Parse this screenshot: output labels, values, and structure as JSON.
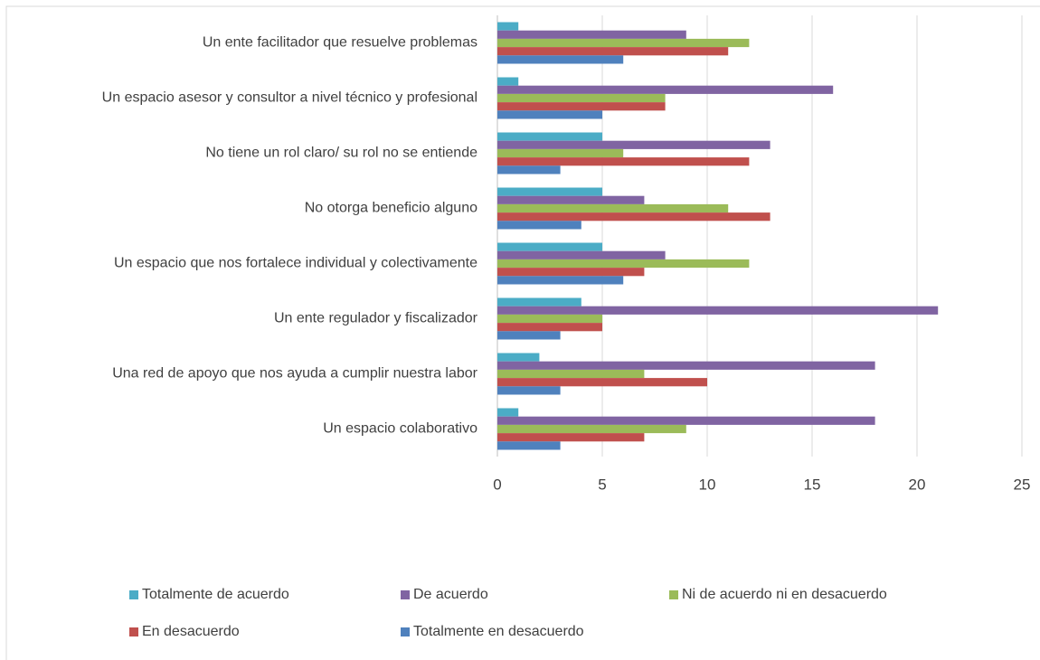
{
  "chart_data": {
    "type": "bar",
    "orientation": "horizontal",
    "categories": [
      "Un ente facilitador que resuelve problemas",
      "Un espacio asesor y consultor a nivel técnico y profesional",
      "No tiene un rol claro/ su rol no se entiende",
      "No otorga beneficio alguno",
      "Un espacio que nos fortalece individual y colectivamente",
      "Un ente regulador y fiscalizador",
      "Una red de apoyo que nos ayuda a cumplir nuestra labor",
      "Un espacio colaborativo"
    ],
    "series": [
      {
        "name": "Totalmente de acuerdo",
        "color": "#4bacc6",
        "values": [
          1,
          1,
          5,
          5,
          5,
          4,
          2,
          1
        ]
      },
      {
        "name": "De acuerdo",
        "color": "#8064a2",
        "values": [
          9,
          16,
          13,
          7,
          8,
          21,
          18,
          18
        ]
      },
      {
        "name": "Ni de acuerdo ni en desacuerdo",
        "color": "#9bbb59",
        "values": [
          12,
          8,
          6,
          11,
          12,
          5,
          7,
          9
        ]
      },
      {
        "name": "En desacuerdo",
        "color": "#c0504d",
        "values": [
          11,
          8,
          12,
          13,
          7,
          5,
          10,
          7
        ]
      },
      {
        "name": "Totalmente en desacuerdo",
        "color": "#4f81bd",
        "values": [
          6,
          5,
          3,
          4,
          6,
          3,
          3,
          3
        ]
      }
    ],
    "xlim": [
      0,
      25
    ],
    "xticks": [
      0,
      5,
      10,
      15,
      20,
      25
    ],
    "grid": true,
    "legend": "bottom"
  }
}
